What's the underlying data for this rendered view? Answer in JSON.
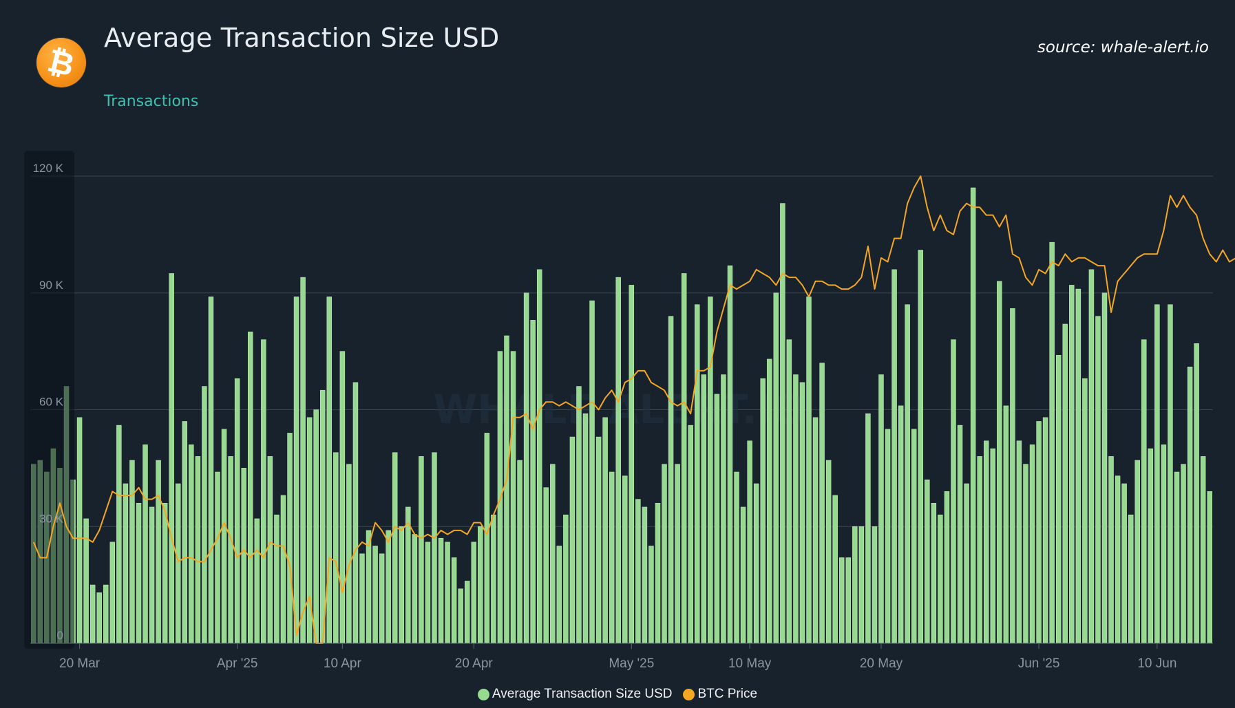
{
  "header": {
    "title": "Average Transaction Size USD",
    "subtitle": "Transactions",
    "source": "source: whale-alert.io",
    "watermark": "WHALE ALERT.IO",
    "logo_glyph": "₿"
  },
  "colors": {
    "background": "#17222d",
    "bar": "#98d991",
    "bar_edge": "#b9eab1",
    "line": "#f5a623",
    "grid": "#3a4650",
    "axis_text": "#8a96a0",
    "subtitle": "#3fc1b0"
  },
  "chart_data": {
    "type": "bar",
    "title": "Average Transaction Size USD",
    "xlabel": "",
    "ylabel": "",
    "ylim": [
      0,
      120000
    ],
    "y_ticks": [
      {
        "value": 0,
        "label": "0"
      },
      {
        "value": 30000,
        "label": "30 K"
      },
      {
        "value": 60000,
        "label": "60 K"
      },
      {
        "value": 90000,
        "label": "90 K"
      },
      {
        "value": 120000,
        "label": "120 K"
      }
    ],
    "x_ticks": [
      {
        "index": 7,
        "label": "20 Mar"
      },
      {
        "index": 31,
        "label": "Apr '25"
      },
      {
        "index": 47,
        "label": "10 Apr"
      },
      {
        "index": 67,
        "label": "20 Apr"
      },
      {
        "index": 91,
        "label": "May '25"
      },
      {
        "index": 109,
        "label": "10 May"
      },
      {
        "index": 129,
        "label": "20 May"
      },
      {
        "index": 153,
        "label": "Jun '25"
      },
      {
        "index": 171,
        "label": "10 Jun"
      }
    ],
    "legend_position": "bottom-center",
    "grid": true,
    "series": [
      {
        "name": "Average Transaction Size USD",
        "kind": "bar",
        "values": [
          46000,
          47000,
          44000,
          50000,
          45000,
          66000,
          42000,
          58000,
          32000,
          15000,
          13000,
          15000,
          26000,
          56000,
          41000,
          47000,
          36000,
          51000,
          35000,
          47000,
          36000,
          95000,
          41000,
          57000,
          51000,
          48000,
          66000,
          89000,
          44000,
          55000,
          48000,
          68000,
          45000,
          80000,
          32000,
          78000,
          48000,
          33000,
          38000,
          54000,
          89000,
          94000,
          58000,
          60000,
          65000,
          89000,
          49000,
          75000,
          46000,
          67000,
          23000,
          29000,
          25000,
          23000,
          29000,
          49000,
          30000,
          35000,
          28000,
          48000,
          26000,
          49000,
          27000,
          26000,
          22000,
          14000,
          16000,
          26000,
          30000,
          54000,
          33000,
          75000,
          79000,
          75000,
          47000,
          90000,
          83000,
          96000,
          40000,
          46000,
          25000,
          33000,
          53000,
          66000,
          59000,
          88000,
          53000,
          58000,
          44000,
          94000,
          43000,
          92000,
          37000,
          35000,
          25000,
          36000,
          46000,
          84000,
          46000,
          95000,
          56000,
          87000,
          69000,
          89000,
          64000,
          69000,
          97000,
          44000,
          35000,
          52000,
          41000,
          68000,
          73000,
          90000,
          113000,
          78000,
          69000,
          67000,
          89000,
          58000,
          72000,
          47000,
          38000,
          22000,
          22000,
          30000,
          30000,
          59000,
          30000,
          69000,
          55000,
          96000,
          61000,
          87000,
          55000,
          101000,
          42000,
          36000,
          33000,
          39000,
          78000,
          56000,
          41000,
          117000,
          48000,
          52000,
          50000,
          93000,
          61000,
          86000,
          52000,
          46000,
          51000,
          57000,
          58000,
          103000,
          74000,
          82000,
          92000,
          91000,
          68000,
          96000,
          84000,
          90000,
          48000,
          43000,
          41000,
          33000,
          47000,
          78000,
          50000,
          87000,
          51000,
          87000,
          44000,
          46000,
          71000,
          77000,
          48000,
          39000
        ]
      },
      {
        "name": "BTC Price",
        "kind": "line",
        "values": [
          26000,
          22000,
          22000,
          30000,
          36000,
          30000,
          27000,
          27000,
          27000,
          26000,
          29000,
          34000,
          39000,
          38000,
          38000,
          38000,
          40000,
          37000,
          37000,
          38000,
          34000,
          27000,
          21000,
          22000,
          22000,
          21000,
          21000,
          24000,
          27000,
          31000,
          27000,
          22000,
          24000,
          22000,
          24000,
          22000,
          26000,
          25000,
          25000,
          20000,
          2000,
          8000,
          12000,
          0,
          0,
          22000,
          21000,
          13000,
          20000,
          24000,
          26000,
          25000,
          31000,
          29000,
          26000,
          30000,
          29000,
          31000,
          28000,
          27000,
          28000,
          27000,
          29000,
          28000,
          29000,
          29000,
          28000,
          31000,
          31000,
          28000,
          33000,
          37000,
          42000,
          58000,
          58000,
          59000,
          55000,
          60000,
          62000,
          62000,
          61000,
          62000,
          61000,
          60000,
          61000,
          62000,
          60000,
          63000,
          65000,
          62000,
          67000,
          68000,
          70000,
          70000,
          67000,
          66000,
          65000,
          62000,
          61000,
          62000,
          59000,
          70000,
          70000,
          71000,
          80000,
          86000,
          92000,
          91000,
          92000,
          93000,
          96000,
          95000,
          94000,
          92000,
          95000,
          94000,
          94000,
          92000,
          89000,
          93000,
          93000,
          92000,
          92000,
          91000,
          91000,
          92000,
          94000,
          102000,
          91000,
          99000,
          98000,
          104000,
          104000,
          113000,
          117000,
          120000,
          112000,
          106000,
          110000,
          106000,
          105000,
          111000,
          113000,
          112000,
          112000,
          110000,
          110000,
          107000,
          110000,
          100000,
          99000,
          94000,
          92000,
          96000,
          95000,
          98000,
          97000,
          100000,
          98000,
          99000,
          99000,
          98000,
          97000,
          97000,
          85000,
          93000,
          95000,
          97000,
          99000,
          100000,
          100000,
          100000,
          106000,
          115000,
          112000,
          115000,
          112000,
          110000,
          104000,
          100000,
          98000,
          101000,
          98000,
          99000,
          99000
        ]
      }
    ]
  },
  "legend": {
    "items": [
      {
        "label": "Average Transaction Size USD",
        "color": "#98d991"
      },
      {
        "label": "BTC Price",
        "color": "#f5a623"
      }
    ]
  }
}
